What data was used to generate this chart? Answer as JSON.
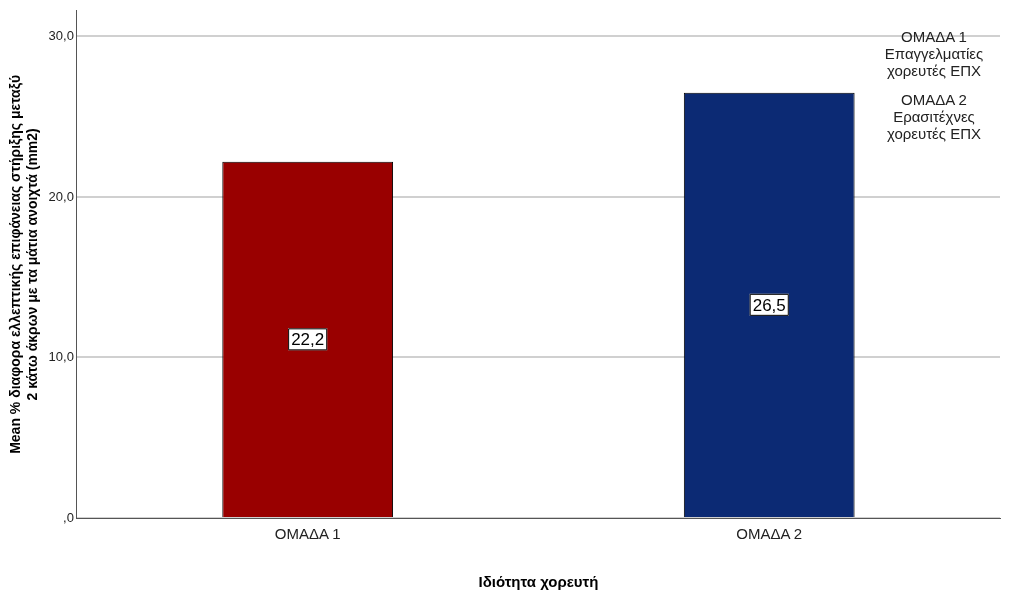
{
  "chart_data": {
    "type": "bar",
    "xlabel": "Ιδιότητα χορευτή",
    "ylabel": "Mean % διαφορα ελλεπτικής επιφάνειας στήριξης μεταξύ\n2 κάτω άκρων με τα μάτια ανοιχτά (mm2)",
    "categories": [
      "ΟΜΑΔΑ 1",
      "ΟΜΑΔΑ 2"
    ],
    "values": [
      22.2,
      26.5
    ],
    "colors": [
      "#990000",
      "#0c2a74"
    ],
    "value_labels": [
      "22,2",
      "26,5"
    ],
    "ylim": [
      0,
      31.6
    ],
    "yticks": [
      {
        "value": 0,
        "label": ",0"
      },
      {
        "value": 10,
        "label": "10,0"
      },
      {
        "value": 20,
        "label": "20,0"
      },
      {
        "value": 30,
        "label": "30,0"
      }
    ],
    "grid": "y",
    "annotations": [
      "ΟΜΑΔΑ 1\nΕπαγγελματίες\nχορευτές ΕΠΧ",
      "ΟΜΑΔΑ 2\nΕρασιτέχνες\nχορευτές ΕΠΧ"
    ]
  }
}
